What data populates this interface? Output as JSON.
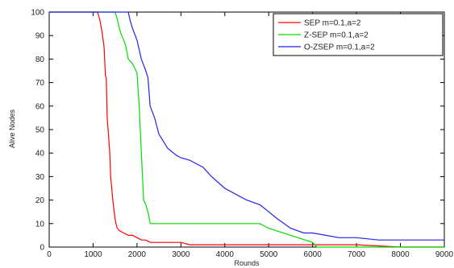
{
  "chart_data": {
    "type": "line",
    "title": "",
    "xlabel": "Rounds",
    "ylabel": "Alive Nodes",
    "xlim": [
      0,
      9000
    ],
    "ylim": [
      0,
      100
    ],
    "xticks": [
      0,
      1000,
      2000,
      3000,
      4000,
      5000,
      6000,
      7000,
      8000,
      9000
    ],
    "yticks": [
      0,
      10,
      20,
      30,
      40,
      50,
      60,
      70,
      80,
      90,
      100
    ],
    "grid": false,
    "legend": "top-right",
    "series": [
      {
        "name": "SEP m=0.1,a=2",
        "color": "#ff0000",
        "x": [
          0,
          1100,
          1150,
          1200,
          1250,
          1280,
          1300,
          1320,
          1350,
          1380,
          1400,
          1450,
          1500,
          1520,
          1550,
          1600,
          1700,
          1800,
          1900,
          2000,
          2100,
          2200,
          2300,
          2400,
          2600,
          3000,
          3200,
          3500,
          4000,
          5000,
          6000,
          7000,
          8000,
          9000
        ],
        "y": [
          100,
          100,
          97,
          92,
          85,
          73,
          72,
          55,
          48,
          40,
          30,
          20,
          12,
          10,
          8,
          7,
          6,
          5,
          5,
          4,
          3,
          3,
          2,
          2,
          2,
          2,
          1,
          1,
          1,
          1,
          1,
          1,
          0,
          0
        ]
      },
      {
        "name": "Z-SEP m=0.1,a=2",
        "color": "#00dd00",
        "x": [
          0,
          1500,
          1550,
          1600,
          1650,
          1700,
          1750,
          1800,
          1900,
          2000,
          2050,
          2100,
          2150,
          2200,
          2250,
          2300,
          3000,
          4000,
          4800,
          5000,
          5500,
          6000,
          6100,
          7000,
          8000,
          9000
        ],
        "y": [
          100,
          100,
          97,
          93,
          90,
          88,
          85,
          80,
          78,
          74,
          60,
          40,
          20,
          18,
          15,
          10,
          10,
          10,
          10,
          8,
          5,
          2,
          0,
          0,
          0,
          0
        ],
        "ylim_note": ""
      },
      {
        "name": "O-ZSEP m=0.1,a=2",
        "color": "#2222ee",
        "x": [
          0,
          1800,
          1850,
          1900,
          2000,
          2100,
          2200,
          2250,
          2300,
          2400,
          2500,
          2600,
          2700,
          2900,
          3000,
          3200,
          3500,
          3700,
          4000,
          4300,
          4500,
          4800,
          5000,
          5200,
          5500,
          5800,
          6000,
          6300,
          6600,
          7000,
          7500,
          8000,
          9000
        ],
        "y": [
          100,
          100,
          96,
          93,
          88,
          80,
          75,
          72,
          60,
          55,
          48,
          45,
          42,
          39,
          38,
          37,
          34,
          30,
          25,
          22,
          20,
          18,
          15,
          12,
          8,
          6,
          6,
          5,
          4,
          4,
          3,
          3,
          3
        ]
      }
    ]
  }
}
